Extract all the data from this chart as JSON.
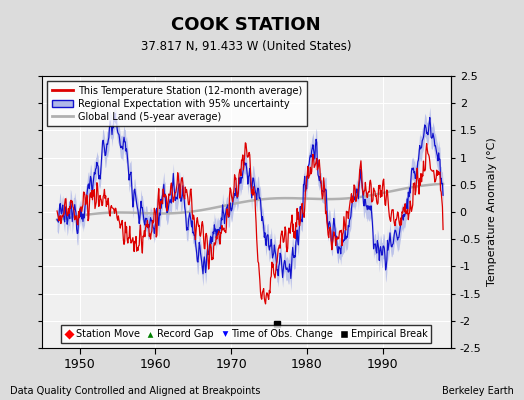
{
  "title": "COOK STATION",
  "subtitle": "37.817 N, 91.433 W (United States)",
  "xlabel_bottom": "Data Quality Controlled and Aligned at Breakpoints",
  "xlabel_right": "Berkeley Earth",
  "ylabel": "Temperature Anomaly (°C)",
  "ylim": [
    -2.5,
    2.5
  ],
  "xlim": [
    1945,
    1999
  ],
  "yticks": [
    -2.5,
    -2,
    -1.5,
    -1,
    -0.5,
    0,
    0.5,
    1,
    1.5,
    2,
    2.5
  ],
  "xticks": [
    1950,
    1960,
    1970,
    1980,
    1990
  ],
  "bg_color": "#dcdcdc",
  "plot_bg_color": "#f0f0f0",
  "grid_color": "#ffffff",
  "red_color": "#dd0000",
  "blue_color": "#1111cc",
  "blue_fill_color": "#b0b8e8",
  "gray_color": "#b0b0b0",
  "empirical_break_year": 1976.0,
  "empirical_break_value": -2.05,
  "legend_labels": [
    "This Temperature Station (12-month average)",
    "Regional Expectation with 95% uncertainty",
    "Global Land (5-year average)"
  ],
  "bottom_legend": [
    "Station Move",
    "Record Gap",
    "Time of Obs. Change",
    "Empirical Break"
  ]
}
